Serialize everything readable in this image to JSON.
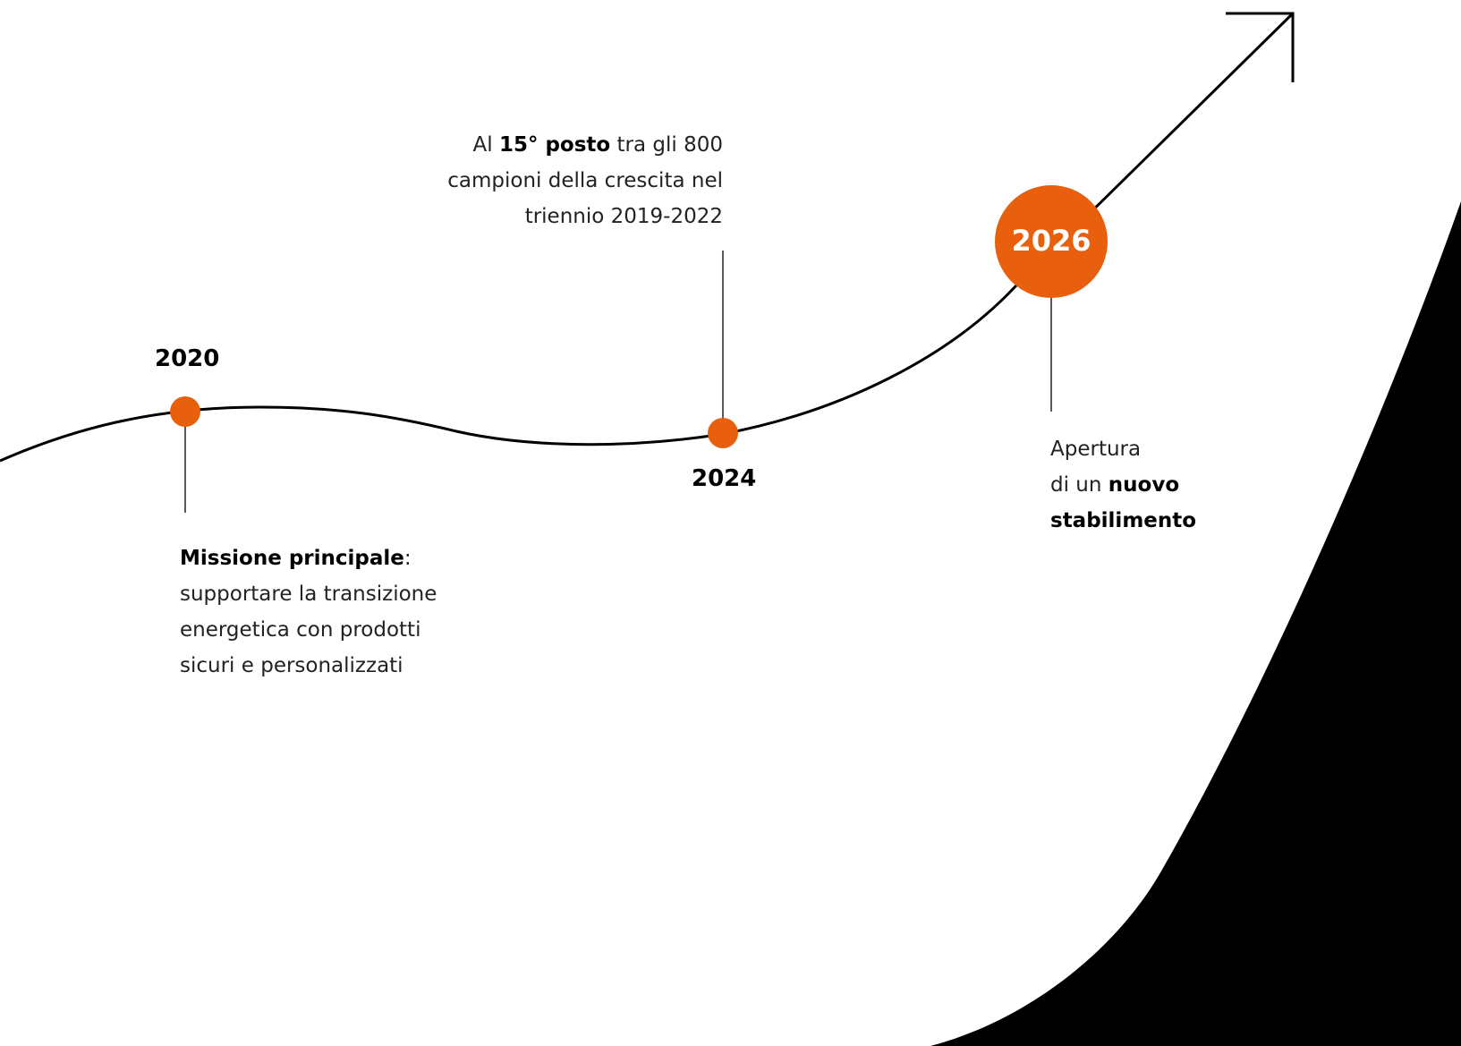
{
  "colors": {
    "accent": "#E8600E",
    "line": "#000000",
    "shape": "#000000",
    "background": "#ffffff"
  },
  "milestones": {
    "m2020": {
      "year": "2020",
      "bold": "Missione principale",
      "after_bold": ":",
      "line2": "supportare la transizione",
      "line3": "energetica con prodotti",
      "line4": "sicuri e personalizzati"
    },
    "m2024": {
      "year": "2024",
      "pre": "Al ",
      "bold": "15° posto",
      "post": " tra gli 800",
      "line2": "campioni della crescita nel",
      "line3": "triennio 2019-2022"
    },
    "m2026": {
      "year": "2026",
      "line1": "Apertura",
      "line2_pre": "di un ",
      "line2_bold": "nuovo",
      "line3_bold": "stabilimento"
    }
  }
}
